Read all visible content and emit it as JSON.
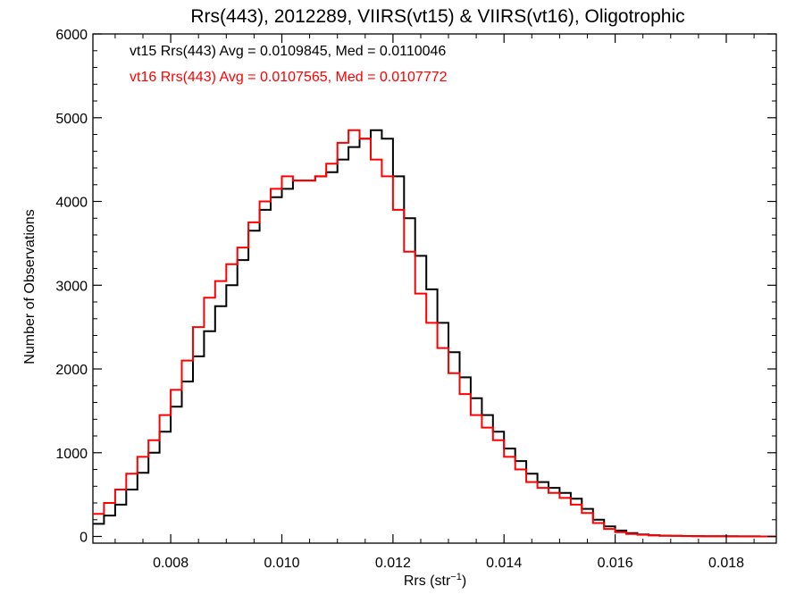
{
  "chart_data": {
    "type": "line",
    "title": "Rrs(443), 2012289, VIIRS(vt15) & VIIRS(vt16), Oligotrophic",
    "xlabel": "Rrs (str",
    "xlabel_sup": "−1",
    "xlabel_close": ")",
    "ylabel": "Number of Observations",
    "xlim": [
      0.0066,
      0.0189
    ],
    "ylim": [
      -80,
      6000
    ],
    "x_ticks": [
      0.008,
      0.01,
      0.012,
      0.014,
      0.016,
      0.018
    ],
    "x_tick_labels": [
      "0.008",
      "0.010",
      "0.012",
      "0.014",
      "0.016",
      "0.018"
    ],
    "y_ticks": [
      0,
      1000,
      2000,
      3000,
      4000,
      5000,
      6000
    ],
    "y_tick_labels": [
      "0",
      "1000",
      "2000",
      "3000",
      "4000",
      "5000",
      "6000"
    ],
    "grid": false,
    "legend_position": "top-left",
    "series": [
      {
        "name": "vt15 Rrs(443) Avg = 0.0109845, Med = 0.0110046",
        "color": "#000000",
        "x": [
          0.0066,
          0.0068,
          0.007,
          0.0072,
          0.0074,
          0.0076,
          0.0078,
          0.008,
          0.0082,
          0.0084,
          0.0086,
          0.0088,
          0.009,
          0.0092,
          0.0094,
          0.0096,
          0.0098,
          0.01,
          0.0102,
          0.0104,
          0.0106,
          0.0108,
          0.011,
          0.0112,
          0.0114,
          0.0116,
          0.0118,
          0.012,
          0.0122,
          0.0124,
          0.0126,
          0.0128,
          0.013,
          0.0132,
          0.0134,
          0.0136,
          0.0138,
          0.014,
          0.0142,
          0.0144,
          0.0146,
          0.0148,
          0.015,
          0.0152,
          0.0154,
          0.0156,
          0.0158,
          0.016,
          0.0162,
          0.0164,
          0.0166,
          0.0168,
          0.017,
          0.0172,
          0.0174,
          0.0176,
          0.0178,
          0.018,
          0.0182,
          0.0184,
          0.0186,
          0.0188,
          0.0189
        ],
        "y": [
          150,
          250,
          380,
          560,
          760,
          1000,
          1250,
          1550,
          1850,
          2150,
          2450,
          2750,
          3000,
          3300,
          3650,
          3900,
          4050,
          4150,
          4250,
          4250,
          4300,
          4350,
          4500,
          4650,
          4750,
          4850,
          4750,
          4300,
          3800,
          3350,
          2950,
          2550,
          2200,
          1900,
          1650,
          1450,
          1250,
          1050,
          900,
          750,
          650,
          580,
          520,
          450,
          330,
          200,
          120,
          70,
          40,
          25,
          15,
          10,
          8,
          5,
          4,
          3,
          2,
          2,
          1,
          1,
          0,
          0,
          0
        ]
      },
      {
        "name": "vt16 Rrs(443) Avg = 0.0107565, Med = 0.0107772",
        "color": "#ff0000",
        "x": [
          0.0066,
          0.0068,
          0.007,
          0.0072,
          0.0074,
          0.0076,
          0.0078,
          0.008,
          0.0082,
          0.0084,
          0.0086,
          0.0088,
          0.009,
          0.0092,
          0.0094,
          0.0096,
          0.0098,
          0.01,
          0.0102,
          0.0104,
          0.0106,
          0.0108,
          0.011,
          0.0112,
          0.0114,
          0.0116,
          0.0118,
          0.012,
          0.0122,
          0.0124,
          0.0126,
          0.0128,
          0.013,
          0.0132,
          0.0134,
          0.0136,
          0.0138,
          0.014,
          0.0142,
          0.0144,
          0.0146,
          0.0148,
          0.015,
          0.0152,
          0.0154,
          0.0156,
          0.0158,
          0.016,
          0.0162,
          0.0164,
          0.0166,
          0.0168,
          0.017,
          0.0172,
          0.0174,
          0.0176,
          0.0178,
          0.018,
          0.0182,
          0.0184,
          0.0186,
          0.0188,
          0.0189
        ],
        "y": [
          270,
          400,
          560,
          750,
          950,
          1150,
          1450,
          1750,
          2100,
          2500,
          2850,
          3050,
          3250,
          3450,
          3750,
          4000,
          4150,
          4300,
          4250,
          4250,
          4300,
          4450,
          4700,
          4850,
          4750,
          4500,
          4300,
          3900,
          3400,
          2900,
          2550,
          2250,
          1950,
          1700,
          1450,
          1300,
          1150,
          950,
          800,
          650,
          580,
          520,
          460,
          380,
          280,
          160,
          90,
          50,
          30,
          20,
          12,
          8,
          6,
          4,
          3,
          2,
          2,
          1,
          1,
          1,
          0,
          0,
          0
        ]
      }
    ]
  }
}
